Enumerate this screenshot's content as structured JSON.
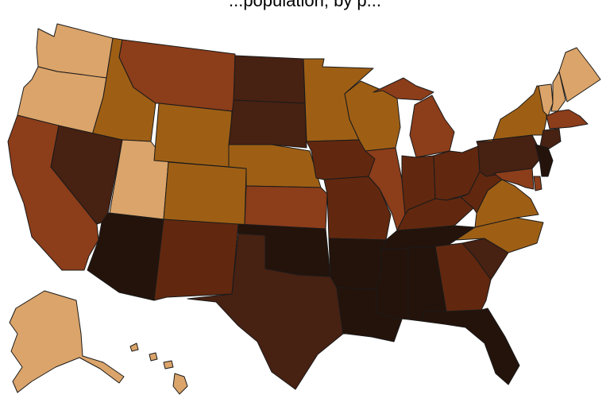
{
  "title": "...population, by p...",
  "palette": {
    "c1": "#dba46a",
    "c2": "#9e5f15",
    "c3": "#8c3d1a",
    "c4": "#61280f",
    "c5": "#472112",
    "c6": "#24130b"
  },
  "states": {
    "WA": "c1",
    "OR": "c1",
    "CA": "c3",
    "ID": "c2",
    "NV": "c5",
    "UT": "c1",
    "AZ": "c6",
    "MT": "c3",
    "WY": "c2",
    "CO": "c2",
    "NM": "c4",
    "ND": "c5",
    "SD": "c5",
    "NE": "c2",
    "KS": "c3",
    "OK": "c6",
    "TX": "c5",
    "MN": "c2",
    "IA": "c4",
    "MO": "c4",
    "AR": "c6",
    "LA": "c6",
    "WI": "c2",
    "IL": "c3",
    "MI": "c3",
    "IN": "c4",
    "OH": "c4",
    "KY": "c4",
    "TN": "c6",
    "MS": "c6",
    "AL": "c6",
    "GA": "c4",
    "FL": "c6",
    "SC": "c5",
    "NC": "c2",
    "VA": "c2",
    "WV": "c4",
    "PA": "c5",
    "NY": "c2",
    "VT": "c1",
    "NH": "c1",
    "ME": "c1",
    "MA": "c3",
    "CT": "c5",
    "NJ": "c6",
    "DE": "c3",
    "MD": "c3",
    "AK": "c1",
    "HI": "c1"
  }
}
